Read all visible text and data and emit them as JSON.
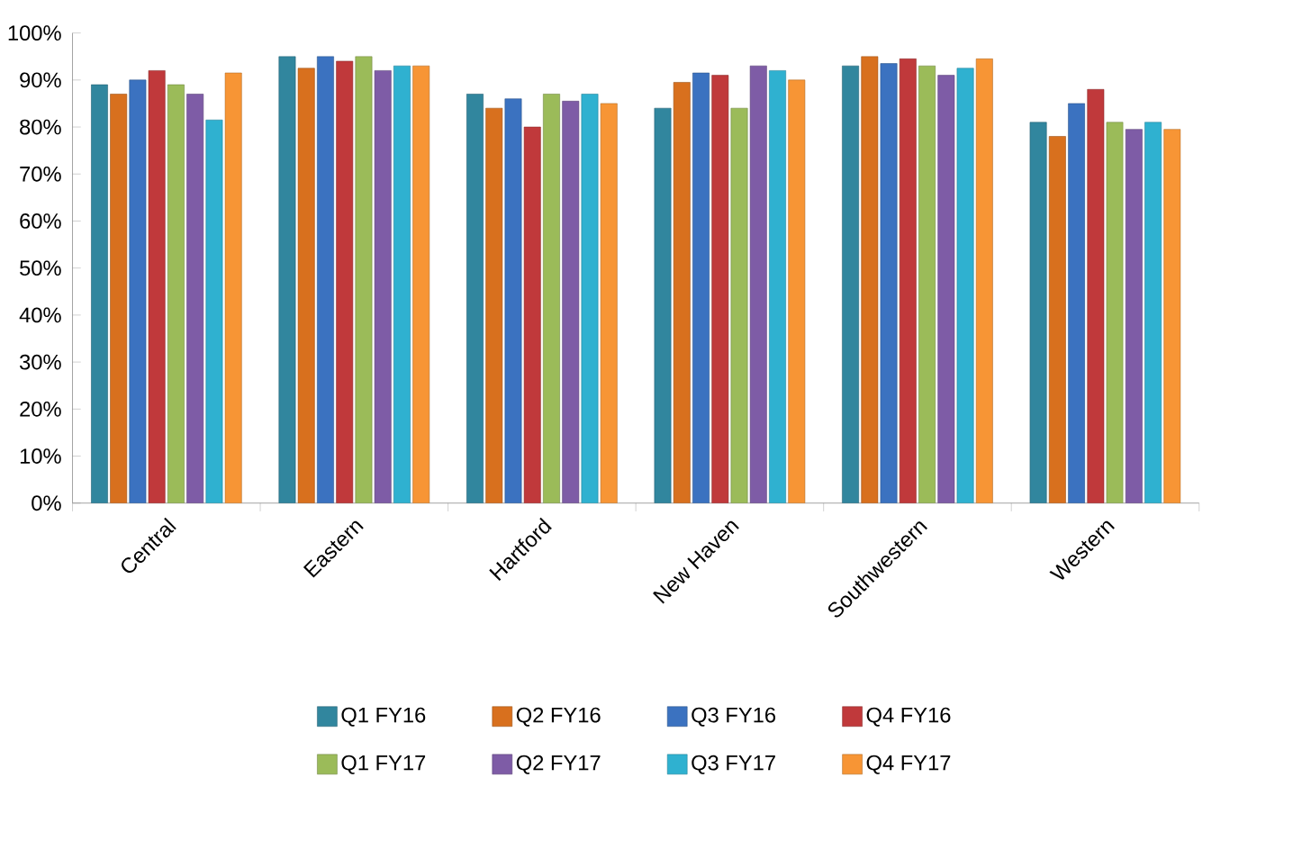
{
  "chart_data": {
    "type": "bar",
    "categories": [
      "Central",
      "Eastern",
      "Hartford",
      "New Haven",
      "Southwestern",
      "Western"
    ],
    "series": [
      {
        "name": "Q1 FY16",
        "color": "#31869e",
        "values": [
          89,
          95,
          87,
          84,
          93,
          81
        ]
      },
      {
        "name": "Q2 FY16",
        "color": "#d8701e",
        "values": [
          87,
          92.5,
          84,
          89.5,
          95,
          78
        ]
      },
      {
        "name": "Q3 FY16",
        "color": "#3b72c0",
        "values": [
          90,
          95,
          86,
          91.5,
          93.5,
          85
        ]
      },
      {
        "name": "Q4 FY16",
        "color": "#c0393b",
        "values": [
          92,
          94,
          80,
          91,
          94.5,
          88
        ]
      },
      {
        "name": "Q1 FY17",
        "color": "#9bbb59",
        "values": [
          89,
          95,
          87,
          84,
          93,
          81
        ]
      },
      {
        "name": "Q2 FY17",
        "color": "#7e5ca6",
        "values": [
          87,
          92,
          85.5,
          93,
          91,
          79.5
        ]
      },
      {
        "name": "Q3 FY17",
        "color": "#2fb1d0",
        "values": [
          81.5,
          93,
          87,
          92,
          92.5,
          81
        ]
      },
      {
        "name": "Q4 FY17",
        "color": "#f79535",
        "values": [
          91.5,
          93,
          85,
          90,
          94.5,
          79.5
        ]
      }
    ],
    "ylim": [
      0,
      100
    ],
    "yticks": [
      {
        "value": 0,
        "label": "0%"
      },
      {
        "value": 10,
        "label": "10%"
      },
      {
        "value": 20,
        "label": "20%"
      },
      {
        "value": 30,
        "label": "30%"
      },
      {
        "value": 40,
        "label": "40%"
      },
      {
        "value": 50,
        "label": "50%"
      },
      {
        "value": 60,
        "label": "60%"
      },
      {
        "value": 70,
        "label": "70%"
      },
      {
        "value": 80,
        "label": "80%"
      },
      {
        "value": 90,
        "label": "90%"
      },
      {
        "value": 100,
        "label": "100%"
      }
    ],
    "legend": "bottom"
  }
}
